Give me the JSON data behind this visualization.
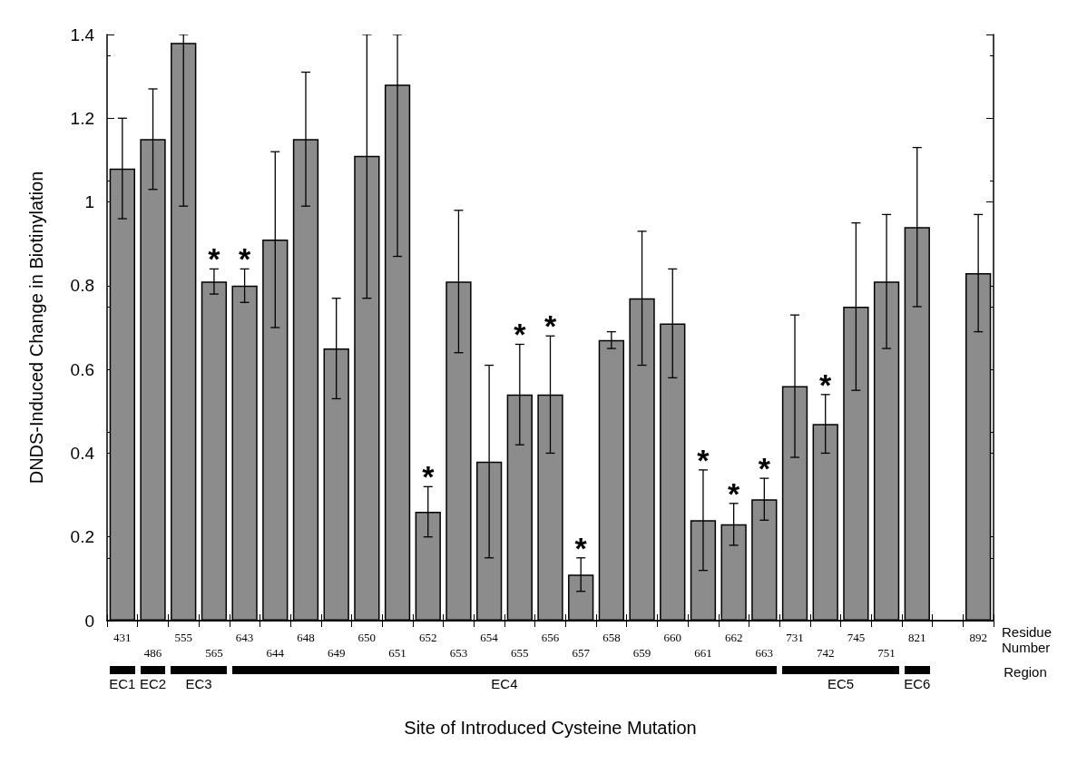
{
  "chart_data": {
    "type": "bar",
    "xlabel": "Site of Introduced Cysteine Mutation",
    "ylabel": "DNDS-Induced Change in Biotinylation",
    "categories": [
      "431",
      "486",
      "555",
      "565",
      "643",
      "644",
      "648",
      "649",
      "650",
      "651",
      "652",
      "653",
      "654",
      "655",
      "656",
      "657",
      "658",
      "659",
      "660",
      "661",
      "662",
      "663",
      "731",
      "742",
      "745",
      "751",
      "821",
      null,
      "892"
    ],
    "values": [
      1.08,
      1.15,
      1.38,
      0.81,
      0.8,
      0.91,
      1.15,
      0.65,
      1.11,
      1.28,
      0.26,
      0.81,
      0.38,
      0.54,
      0.54,
      0.11,
      0.67,
      0.77,
      0.71,
      0.24,
      0.23,
      0.29,
      0.56,
      0.47,
      0.75,
      0.81,
      0.94,
      null,
      0.83
    ],
    "errors": [
      0.12,
      0.12,
      [
        0.99,
        1.4
      ],
      0.03,
      0.04,
      0.21,
      0.16,
      0.12,
      [
        0.77,
        1.4
      ],
      [
        0.87,
        1.4
      ],
      0.06,
      0.17,
      0.23,
      0.12,
      0.14,
      0.04,
      0.02,
      0.16,
      0.13,
      0.12,
      0.05,
      0.05,
      0.17,
      0.07,
      0.2,
      0.16,
      0.19,
      null,
      0.14
    ],
    "color": "#8c8c8c",
    "ylim": [
      0,
      1.4
    ],
    "yticks": [
      0,
      0.2,
      0.4,
      0.6,
      0.8,
      1,
      1.2,
      1.4
    ],
    "grid": false,
    "annotations": [
      "Residue Number",
      "Region",
      "EC1",
      "EC2",
      "EC3",
      "EC4",
      "EC5",
      "EC6",
      {
        "text": "*",
        "x": "565",
        "y": 0.84
      },
      {
        "text": "*",
        "x": "643",
        "y": 0.84
      },
      {
        "text": "*",
        "x": "652",
        "y": 0.32
      },
      {
        "text": "*",
        "x": "655",
        "y": 0.66
      },
      {
        "text": "*",
        "x": "656",
        "y": 0.68
      },
      {
        "text": "*",
        "x": "657",
        "y": 0.15
      },
      {
        "text": "*",
        "x": "661",
        "y": 0.36
      },
      {
        "text": "*",
        "x": "662",
        "y": 0.28
      },
      {
        "text": "*",
        "x": "663",
        "y": 0.34
      },
      {
        "text": "*",
        "x": "742",
        "y": 0.54
      }
    ]
  }
}
